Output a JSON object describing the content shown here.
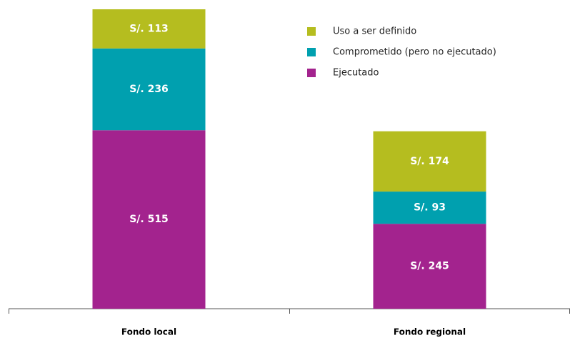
{
  "chart_data": {
    "type": "stacked_bar",
    "categories": [
      "Fondo local",
      "Fondo regional"
    ],
    "series": [
      {
        "name": "Ejecutado",
        "color": "#a3238e",
        "values": [
          515,
          245
        ],
        "value_labels": [
          "S/. 515",
          "S/. 245"
        ]
      },
      {
        "name": "Comprometido (pero no ejecutado)",
        "color": "#00a0af",
        "values": [
          236,
          93
        ],
        "value_labels": [
          "S/. 236",
          "S/. 93"
        ]
      },
      {
        "name": "Uso a ser definido",
        "color": "#b5bd1f",
        "values": [
          113,
          174
        ],
        "value_labels": [
          "S/. 113",
          "S/. 174"
        ]
      }
    ],
    "ylim": [
      0,
      864
    ],
    "legend": "upper right"
  }
}
